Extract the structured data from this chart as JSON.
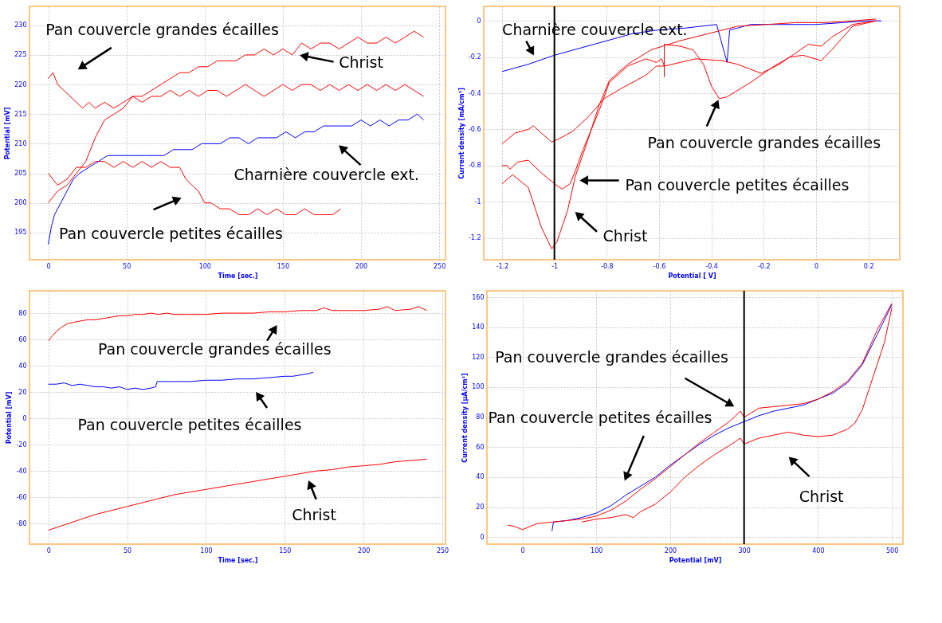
{
  "chart_data": [
    {
      "type": "line",
      "xlabel": "Time [sec.]",
      "ylabel": "Potential [mV]",
      "xlim": [
        -12,
        254
      ],
      "ylim": [
        190.4,
        233.2
      ],
      "xticks": [
        0,
        50,
        100,
        150,
        200,
        250
      ],
      "yticks": [
        195,
        200,
        205,
        210,
        215,
        220,
        225,
        230
      ],
      "grid": true,
      "series": [
        {
          "color": "#ff0000",
          "x": [
            0,
            3,
            6,
            10,
            14,
            18,
            22,
            26,
            30,
            36,
            42,
            48,
            54,
            60,
            66,
            72,
            78,
            84,
            90,
            96,
            102,
            108,
            114,
            120,
            126,
            132,
            138,
            144,
            150,
            156,
            162,
            168,
            174,
            180,
            186,
            192,
            198,
            204,
            210,
            216,
            222,
            228,
            234,
            240
          ],
          "values": [
            221,
            222,
            220,
            219,
            218,
            217,
            216,
            217,
            216,
            217,
            216,
            217,
            218,
            217,
            218,
            218,
            219,
            218,
            219,
            218,
            219,
            219,
            218,
            219,
            220,
            219,
            218,
            219,
            220,
            219,
            220,
            220,
            219,
            220,
            219,
            220,
            219,
            220,
            219,
            220,
            219,
            220,
            219,
            218
          ]
        },
        {
          "color": "#ff0000",
          "x": [
            0,
            6,
            12,
            18,
            24,
            30,
            36,
            42,
            48,
            54,
            60,
            66,
            72,
            78,
            84,
            90,
            96,
            102,
            108,
            114,
            120,
            126,
            132,
            138,
            144,
            150,
            156,
            162,
            168,
            174,
            180,
            186,
            192,
            198,
            204,
            210,
            216,
            222,
            228,
            234,
            240
          ],
          "values": [
            200,
            202,
            203,
            205,
            207,
            211,
            214,
            215,
            216,
            218,
            218,
            219,
            220,
            221,
            222,
            222,
            223,
            223,
            224,
            224,
            224,
            225,
            225,
            226,
            225,
            226,
            225,
            227,
            226,
            227,
            227,
            226,
            227,
            228,
            227,
            227,
            228,
            227,
            228,
            229,
            228
          ]
        },
        {
          "color": "#ff0000",
          "x": [
            0,
            6,
            12,
            18,
            24,
            30,
            36,
            42,
            48,
            54,
            60,
            66,
            72,
            78,
            84,
            88,
            92,
            96,
            100,
            104,
            110,
            116,
            122,
            128,
            134,
            140,
            146,
            152,
            158,
            164,
            170,
            176,
            182,
            187
          ],
          "values": [
            205,
            203,
            204,
            206,
            206,
            207,
            207,
            206,
            207,
            206,
            207,
            206,
            207,
            206,
            206,
            204,
            203,
            202,
            200,
            200,
            199,
            199,
            198,
            198,
            199,
            198,
            199,
            198,
            198,
            199,
            198,
            198,
            198,
            199
          ]
        },
        {
          "color": "#0000ff",
          "x": [
            0,
            2,
            4,
            8,
            12,
            16,
            20,
            26,
            32,
            38,
            44,
            50,
            56,
            62,
            68,
            74,
            80,
            86,
            92,
            98,
            104,
            110,
            116,
            122,
            128,
            134,
            140,
            146,
            152,
            158,
            164,
            170,
            176,
            182,
            188,
            194,
            200,
            206,
            212,
            218,
            224,
            230,
            236,
            240
          ],
          "values": [
            193,
            196,
            198,
            200,
            202,
            204,
            205,
            206,
            207,
            208,
            208,
            208,
            208,
            208,
            208,
            208,
            209,
            209,
            209,
            210,
            210,
            210,
            211,
            211,
            210,
            211,
            211,
            211,
            212,
            211,
            212,
            212,
            213,
            213,
            213,
            213,
            214,
            213,
            214,
            213,
            214,
            214,
            215,
            214
          ]
        }
      ],
      "annotations": [
        "Pan couvercle grandes écailles",
        "Christ",
        "Charnière couvercle ext.",
        "Pan couvercle petites écailles"
      ]
    },
    {
      "type": "line",
      "xlabel": "Potential [ V]",
      "ylabel": "Current density [mA/cm²]",
      "xlim": [
        -1.27,
        0.32
      ],
      "ylim": [
        -1.32,
        0.08
      ],
      "xticks": [
        -1.2,
        -1,
        -0.8,
        -0.6,
        -0.4,
        -0.2,
        0,
        0.2
      ],
      "yticks": [
        -1.2,
        -1,
        -0.8,
        -0.6,
        -0.4,
        -0.2,
        0
      ],
      "grid": true,
      "series": [
        {
          "color": "#0000ff",
          "x": [
            -1.2,
            -1.1,
            -1.0,
            -0.9,
            -0.8,
            -0.7,
            -0.6,
            -0.5,
            -0.38,
            -0.34,
            -0.33,
            -0.3,
            -0.25,
            -0.15,
            0,
            0.1,
            0.2,
            0.25
          ],
          "values": [
            -0.28,
            -0.24,
            -0.19,
            -0.15,
            -0.11,
            -0.07,
            -0.05,
            -0.04,
            -0.02,
            -0.23,
            -0.05,
            -0.04,
            -0.02,
            -0.02,
            -0.02,
            -0.01,
            0,
            0
          ]
        },
        {
          "color": "#ff0000",
          "x": [
            -1.2,
            -1.16,
            -1.1,
            -1.05,
            -1.01,
            -0.99,
            -0.95,
            -0.92,
            -0.87,
            -0.83,
            -0.79,
            -0.72,
            -0.63,
            -0.52,
            -0.41,
            -0.3,
            -0.19,
            -0.08,
            0.03,
            0.14,
            0.23
          ],
          "values": [
            -0.9,
            -0.85,
            -0.92,
            -1.14,
            -1.26,
            -1.22,
            -1.05,
            -0.86,
            -0.65,
            -0.47,
            -0.33,
            -0.24,
            -0.16,
            -0.11,
            -0.07,
            -0.03,
            -0.02,
            -0.01,
            -0.01,
            0,
            0.01
          ]
        },
        {
          "color": "#ff0000",
          "x": [
            -1.2,
            -1.18,
            -1.17,
            -1.14,
            -1.1,
            -1.05,
            -1.0,
            -0.97,
            -0.94,
            -0.92,
            -0.89,
            -0.83,
            -0.79,
            -0.72,
            -0.65,
            -0.61,
            -0.59,
            -0.58,
            -0.52,
            -0.46,
            -0.36,
            -0.3,
            -0.21,
            -0.14,
            -0.08,
            -0.03,
            0.02,
            0.06,
            0.14,
            0.23
          ],
          "values": [
            -0.8,
            -0.8,
            -0.82,
            -0.78,
            -0.77,
            -0.84,
            -0.9,
            -0.93,
            -0.9,
            -0.83,
            -0.71,
            -0.5,
            -0.34,
            -0.25,
            -0.21,
            -0.23,
            -0.21,
            -0.25,
            -0.23,
            -0.21,
            -0.22,
            -0.24,
            -0.29,
            -0.24,
            -0.18,
            -0.13,
            -0.14,
            -0.09,
            -0.02,
            0
          ]
        },
        {
          "color": "#ff0000",
          "x": [
            -1.2,
            -1.15,
            -1.1,
            -1.08,
            -1.05,
            -1.01,
            -0.98,
            -0.93,
            -0.87,
            -0.81,
            -0.74,
            -0.65,
            -0.61,
            -0.58,
            -0.58,
            -0.58,
            -0.52,
            -0.47,
            -0.43,
            -0.4,
            -0.37,
            -0.34,
            -0.25,
            -0.16,
            -0.1,
            -0.05,
            0.02,
            0.06,
            0.14,
            0.23
          ],
          "values": [
            -0.68,
            -0.62,
            -0.6,
            -0.58,
            -0.62,
            -0.67,
            -0.65,
            -0.61,
            -0.53,
            -0.43,
            -0.37,
            -0.3,
            -0.25,
            -0.25,
            -0.31,
            -0.13,
            -0.14,
            -0.16,
            -0.24,
            -0.36,
            -0.43,
            -0.42,
            -0.34,
            -0.25,
            -0.2,
            -0.19,
            -0.22,
            -0.16,
            -0.03,
            0
          ]
        }
      ],
      "ref_lines": [
        {
          "axis": "x",
          "value": -1,
          "color": "#000000"
        }
      ],
      "annotations": [
        "Charnière couvercle ext.",
        {
          "text": "Pan couvercle grandes écailles",
          "x": -0.368,
          "y": -0.42
        },
        "Pan couvercle petites écailles",
        "Christ"
      ]
    },
    {
      "type": "line",
      "xlabel": "Time [sec.]",
      "ylabel": "Potential [mV]",
      "xlim": [
        -12,
        252
      ],
      "ylim": [
        -95.6,
        97
      ],
      "xticks": [
        0,
        50,
        100,
        150,
        200,
        250
      ],
      "yticks": [
        -80,
        -60,
        -40,
        -20,
        0,
        20,
        40,
        60,
        80
      ],
      "grid": true,
      "series": [
        {
          "color": "#ff0000",
          "x": [
            0,
            2,
            5,
            8,
            12,
            16,
            20,
            25,
            30,
            35,
            40,
            45,
            50,
            55,
            60,
            65,
            70,
            75,
            80,
            90,
            100,
            110,
            120,
            130,
            140,
            150,
            160,
            170,
            175,
            180,
            190,
            200,
            210,
            215,
            220,
            230,
            235,
            240
          ],
          "values": [
            59,
            62,
            66,
            69,
            72,
            73,
            74,
            75,
            75,
            76,
            77,
            78,
            78,
            79,
            79,
            80,
            79,
            80,
            79,
            79,
            79,
            80,
            80,
            80,
            81,
            81,
            82,
            82,
            84,
            82,
            82,
            82,
            83,
            85,
            82,
            83,
            85,
            82
          ]
        },
        {
          "color": "#0000ff",
          "x": [
            0,
            5,
            10,
            15,
            20,
            25,
            30,
            35,
            40,
            45,
            50,
            55,
            60,
            65,
            68,
            69,
            75,
            80,
            90,
            100,
            110,
            120,
            130,
            140,
            150,
            155,
            160,
            165,
            168
          ],
          "values": [
            26,
            26,
            27,
            25,
            26,
            25,
            24,
            24,
            23,
            24,
            22,
            23,
            22,
            23,
            24,
            28,
            28,
            28,
            28,
            29,
            29,
            30,
            30,
            31,
            32,
            32,
            33,
            34,
            35
          ]
        },
        {
          "color": "#ff0000",
          "x": [
            0,
            10,
            20,
            30,
            40,
            50,
            60,
            70,
            80,
            90,
            100,
            110,
            120,
            130,
            140,
            150,
            160,
            170,
            180,
            190,
            200,
            210,
            220,
            230,
            240
          ],
          "values": [
            -85,
            -81,
            -77,
            -73,
            -70,
            -67,
            -64,
            -61,
            -58,
            -56,
            -54,
            -52,
            -50,
            -48,
            -46,
            -44,
            -42,
            -40,
            -39,
            -37,
            -36,
            -35,
            -33,
            -32,
            -31
          ]
        }
      ],
      "annotations": [
        "Pan couvercle grandes écailles",
        "Pan couvercle petites écailles",
        "Christ"
      ]
    },
    {
      "type": "line",
      "xlabel": "Potential [mV]",
      "ylabel": "Current density [µA/cm²]",
      "xlim": [
        -48,
        515
      ],
      "ylim": [
        -4.7,
        164.3
      ],
      "xticks": [
        0,
        100,
        200,
        300,
        400,
        500
      ],
      "yticks": [
        0,
        20,
        40,
        60,
        80,
        100,
        120,
        140,
        160
      ],
      "grid": true,
      "series": [
        {
          "color": "#0000ff",
          "x": [
            40,
            42,
            60,
            80,
            100,
            120,
            140,
            160,
            180,
            200,
            220,
            240,
            260,
            280,
            300,
            320,
            340,
            360,
            380,
            400,
            420,
            440,
            460,
            480,
            500
          ],
          "values": [
            4,
            10,
            11,
            13,
            16,
            21,
            28,
            34,
            40,
            48,
            55,
            62,
            68,
            73,
            77,
            81,
            84,
            86,
            88,
            92,
            96,
            103,
            115,
            135,
            155
          ]
        },
        {
          "color": "#ff0000",
          "x": [
            -20,
            -10,
            0,
            20,
            40,
            60,
            80,
            100,
            120,
            140,
            160,
            180,
            200,
            220,
            240,
            260,
            280,
            295,
            300,
            320,
            340,
            360,
            380,
            400,
            420,
            440,
            460,
            480,
            500
          ],
          "values": [
            8,
            7,
            5,
            9,
            10,
            11,
            12,
            14,
            18,
            24,
            32,
            39,
            47,
            55,
            63,
            70,
            77,
            84,
            80,
            86,
            87,
            88,
            89,
            92,
            97,
            104,
            116,
            138,
            156
          ]
        },
        {
          "color": "#ff0000",
          "x": [
            80,
            100,
            120,
            140,
            150,
            160,
            180,
            200,
            220,
            240,
            260,
            280,
            295,
            300,
            320,
            340,
            360,
            380,
            400,
            420,
            440,
            450,
            460,
            470,
            480,
            490,
            500
          ],
          "values": [
            10,
            12,
            13,
            15,
            13,
            17,
            22,
            30,
            40,
            48,
            55,
            61,
            66,
            62,
            66,
            68,
            70,
            68,
            67,
            68,
            72,
            76,
            85,
            100,
            115,
            130,
            153
          ]
        }
      ],
      "ref_lines": [
        {
          "axis": "x",
          "value": 300,
          "color": "#000000"
        }
      ],
      "annotations": [
        "Pan couvercle grandes écailles",
        "Pan couvercle petites écailles",
        "Christ"
      ]
    }
  ]
}
